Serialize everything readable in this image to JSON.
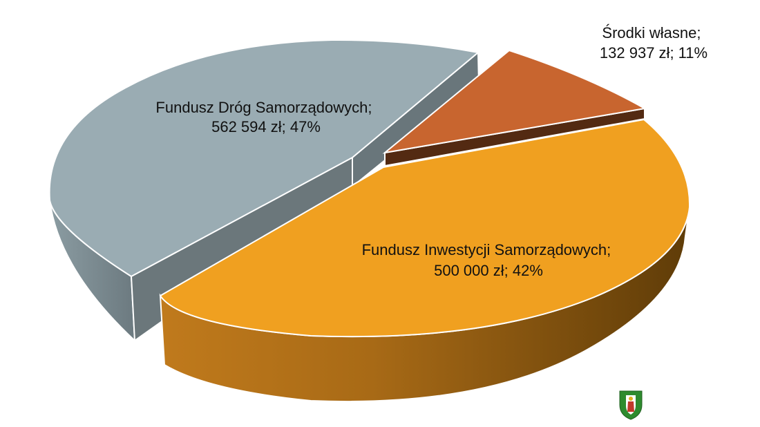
{
  "chart_data": {
    "type": "pie",
    "style": "3d-exploded",
    "title": "",
    "legend": "none",
    "slices": [
      {
        "name": "Fundusz Dróg Samorządowych",
        "value": 562594,
        "unit": "zł",
        "percent": 47,
        "label_line1": "Fundusz Dróg Samorządowych;",
        "label_line2": "562 594 zł; 47%",
        "color": "#9aacb3"
      },
      {
        "name": "Środki własne",
        "value": 132937,
        "unit": "zł",
        "percent": 11,
        "label_line1": "Środki własne;",
        "label_line2": "132 937 zł; 11%",
        "color": "#c8652f"
      },
      {
        "name": "Fundusz Inwestycji Samorządowych",
        "value": 500000,
        "unit": "zł",
        "percent": 42,
        "label_line1": "Fundusz Inwestycji Samorządowych;",
        "label_line2": "500 000 zł; 42%",
        "color": "#f0a020"
      }
    ]
  },
  "emblem": {
    "icon": "coat-of-arms-icon",
    "colors": [
      "#2e8b2e",
      "#ffffff",
      "#c0392b",
      "#e0b020"
    ]
  }
}
